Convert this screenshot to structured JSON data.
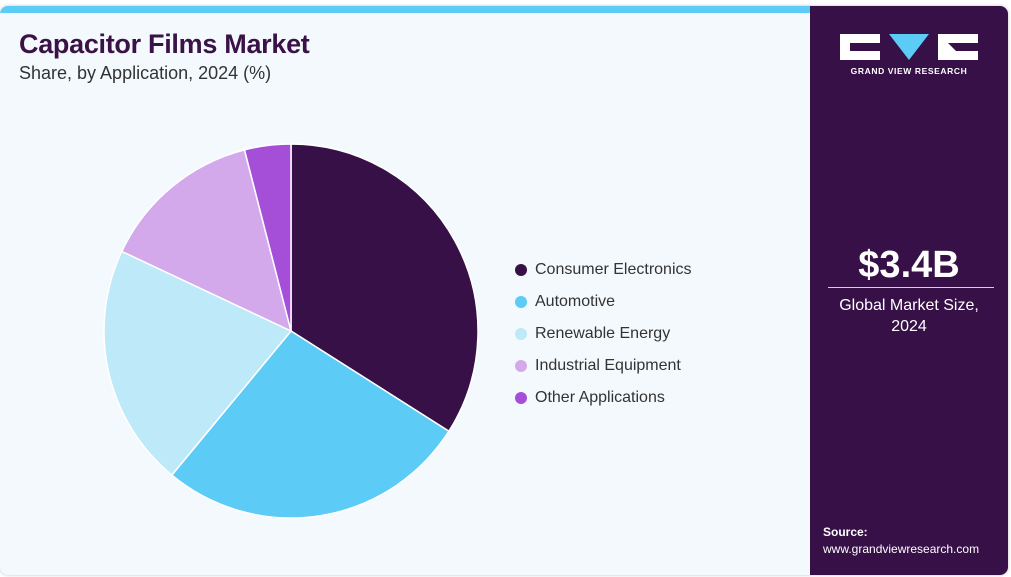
{
  "header": {
    "title": "Capacitor Films Market",
    "subtitle": "Share, by Application, 2024 (%)"
  },
  "chart_data": {
    "type": "pie",
    "title": "Capacitor Films Market",
    "subtitle": "Share, by Application, 2024 (%)",
    "start_angle_deg": 0,
    "direction": "clockwise",
    "legend_position": "right",
    "categories": [
      "Consumer Electronics",
      "Automotive",
      "Renewable Energy",
      "Industrial Equipment",
      "Other Applications"
    ],
    "values": [
      34,
      27,
      21,
      14,
      4
    ],
    "colors": [
      "#361046",
      "#5ccbf5",
      "#bde9f8",
      "#d4a9ec",
      "#a54fd8"
    ]
  },
  "legend": {
    "items": [
      {
        "label": "Consumer Electronics",
        "color": "#361046"
      },
      {
        "label": "Automotive",
        "color": "#5ccbf5"
      },
      {
        "label": "Renewable Energy",
        "color": "#bde9f8"
      },
      {
        "label": "Industrial Equipment",
        "color": "#d4a9ec"
      },
      {
        "label": "Other Applications",
        "color": "#a54fd8"
      }
    ]
  },
  "sidebar": {
    "logo_text": "GRAND VIEW RESEARCH",
    "stat_value": "$3.4B",
    "stat_label_line1": "Global Market Size,",
    "stat_label_line2": "2024",
    "source_label": "Source:",
    "source_url": "www.grandviewresearch.com",
    "background": "#361046"
  }
}
